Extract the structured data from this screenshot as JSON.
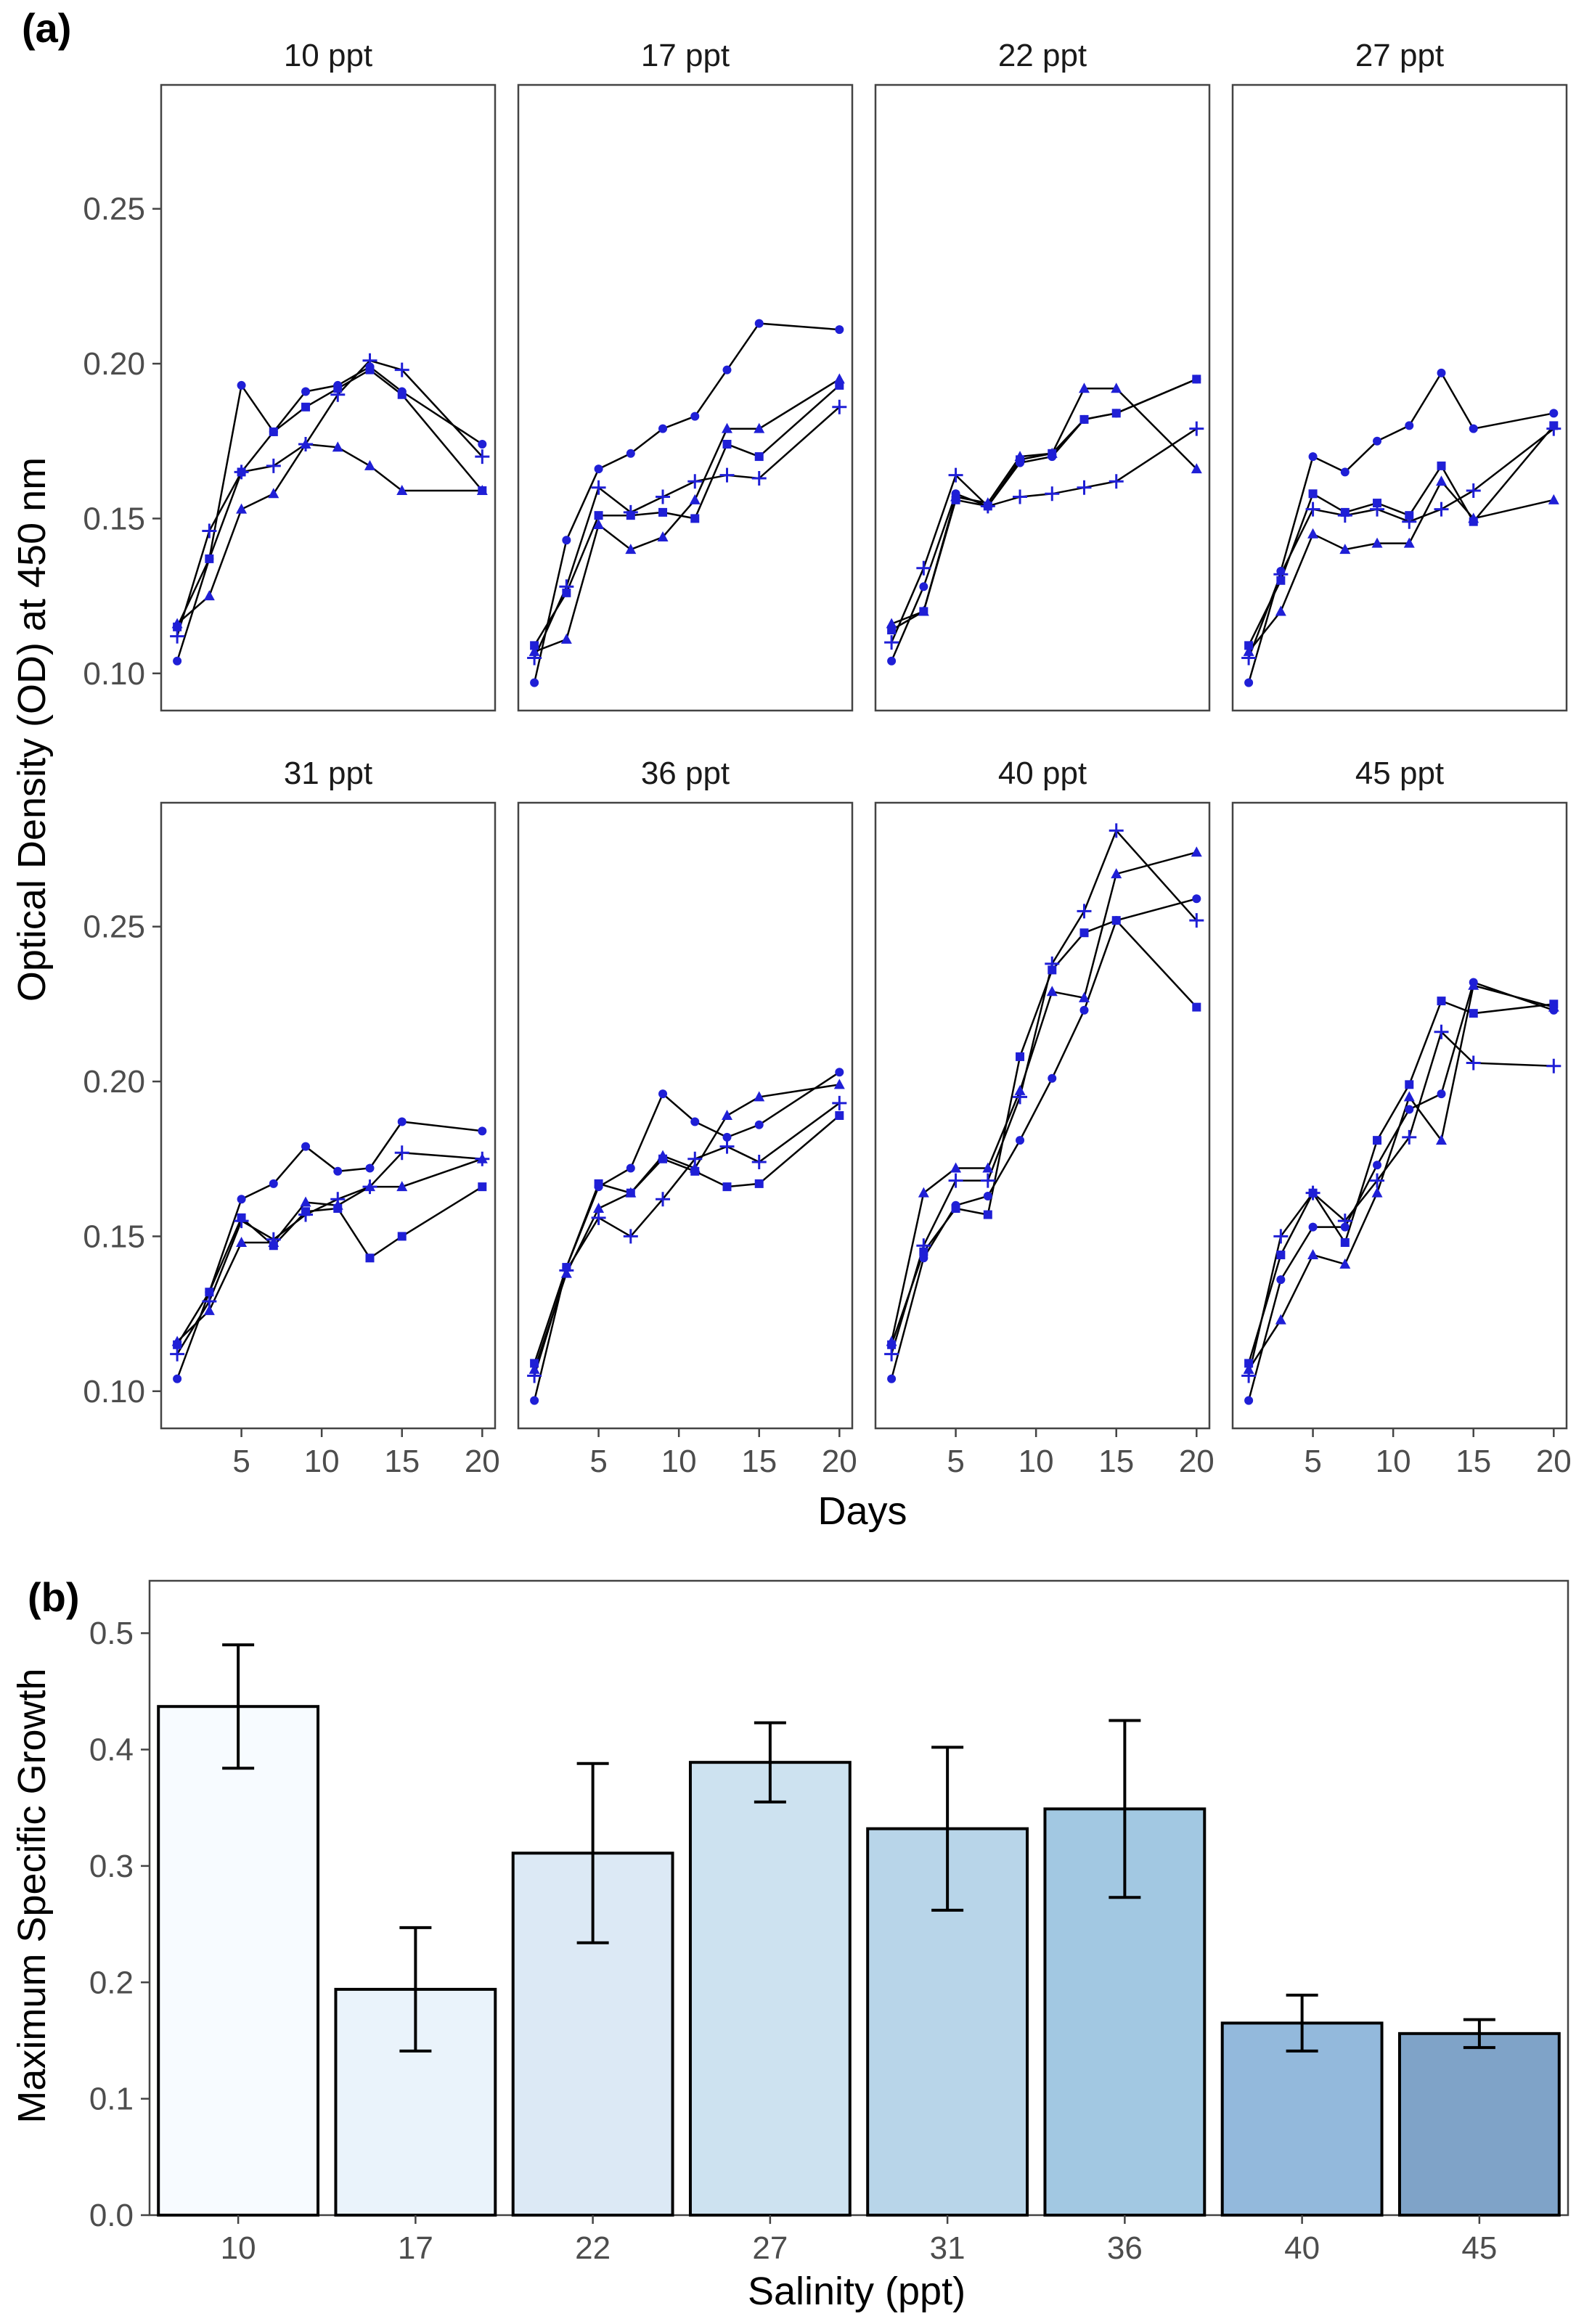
{
  "chart_data": [
    {
      "type": "line",
      "tag": "(a)",
      "xlabel": "Days",
      "ylabel": "Optical Density (OD) at 450 nm",
      "ylim": [
        0.088,
        0.29
      ],
      "xlim": [
        0,
        20.8
      ],
      "yticks": [
        0.1,
        0.15,
        0.2,
        0.25
      ],
      "ytick_labels": [
        "0.10",
        "0.15",
        "0.20",
        "0.25"
      ],
      "xticks": [
        5,
        10,
        15,
        20
      ],
      "xtick_labels": [
        "5",
        "10",
        "15",
        "20"
      ],
      "x": [
        1,
        3,
        5,
        7,
        9,
        11,
        13,
        15,
        20
      ],
      "marker_color": "#1f1fd6",
      "series_markers": [
        "circle",
        "square",
        "triangle",
        "plus"
      ],
      "panels": [
        {
          "label": "10 ppt",
          "series": [
            {
              "name": "circle",
              "values": [
                0.104,
                0.137,
                0.193,
                0.178,
                0.191,
                0.193,
                0.199,
                0.191,
                0.174
              ]
            },
            {
              "name": "square",
              "values": [
                0.115,
                0.137,
                0.165,
                0.178,
                0.186,
                0.192,
                0.198,
                0.19,
                0.159
              ]
            },
            {
              "name": "triangle",
              "values": [
                0.116,
                0.125,
                0.153,
                0.158,
                0.174,
                0.173,
                0.167,
                0.159,
                0.159
              ]
            },
            {
              "name": "plus",
              "values": [
                0.112,
                0.146,
                0.165,
                0.167,
                0.174,
                0.19,
                0.201,
                0.198,
                0.17
              ]
            }
          ]
        },
        {
          "label": "17 ppt",
          "series": [
            {
              "name": "circle",
              "values": [
                0.097,
                0.143,
                0.166,
                0.171,
                0.179,
                0.183,
                0.198,
                0.213,
                0.211
              ]
            },
            {
              "name": "square",
              "values": [
                0.109,
                0.126,
                0.151,
                0.151,
                0.152,
                0.15,
                0.174,
                0.17,
                0.193
              ]
            },
            {
              "name": "triangle",
              "values": [
                0.107,
                0.111,
                0.148,
                0.14,
                0.144,
                0.156,
                0.179,
                0.179,
                0.195
              ]
            },
            {
              "name": "plus",
              "values": [
                0.105,
                0.128,
                0.16,
                0.152,
                0.157,
                0.162,
                0.164,
                0.163,
                0.186
              ]
            }
          ]
        },
        {
          "label": "22 ppt",
          "series": [
            {
              "name": "circle",
              "values": [
                0.104,
                0.128,
                0.158,
                0.154,
                0.168,
                0.17,
                0.182,
                0.184,
                0.195
              ]
            },
            {
              "name": "square",
              "values": [
                0.114,
                0.12,
                0.156,
                0.154,
                0.169,
                0.171,
                0.182,
                0.184,
                0.195
              ]
            },
            {
              "name": "triangle",
              "values": [
                0.116,
                0.12,
                0.157,
                0.155,
                0.17,
                0.171,
                0.192,
                0.192,
                0.166
              ]
            },
            {
              "name": "plus",
              "values": [
                0.11,
                0.134,
                0.164,
                0.154,
                0.157,
                0.158,
                0.16,
                0.162,
                0.179
              ]
            }
          ]
        },
        {
          "label": "27 ppt",
          "series": [
            {
              "name": "circle",
              "values": [
                0.097,
                0.133,
                0.17,
                0.165,
                0.175,
                0.18,
                0.197,
                0.179,
                0.184
              ]
            },
            {
              "name": "square",
              "values": [
                0.109,
                0.13,
                0.158,
                0.152,
                0.155,
                0.151,
                0.167,
                0.149,
                0.18
              ]
            },
            {
              "name": "triangle",
              "values": [
                0.107,
                0.12,
                0.145,
                0.14,
                0.142,
                0.142,
                0.162,
                0.15,
                0.156
              ]
            },
            {
              "name": "plus",
              "values": [
                0.105,
                0.132,
                0.153,
                0.151,
                0.153,
                0.149,
                0.153,
                0.159,
                0.179
              ]
            }
          ]
        },
        {
          "label": "31 ppt",
          "series": [
            {
              "name": "circle",
              "values": [
                0.104,
                0.132,
                0.162,
                0.167,
                0.179,
                0.171,
                0.172,
                0.187,
                0.184
              ]
            },
            {
              "name": "square",
              "values": [
                0.115,
                0.132,
                0.156,
                0.147,
                0.158,
                0.159,
                0.143,
                0.15,
                0.166
              ]
            },
            {
              "name": "triangle",
              "values": [
                0.116,
                0.126,
                0.148,
                0.148,
                0.161,
                0.16,
                0.166,
                0.166,
                0.175
              ]
            },
            {
              "name": "plus",
              "values": [
                0.112,
                0.129,
                0.155,
                0.149,
                0.157,
                0.162,
                0.166,
                0.177,
                0.175
              ]
            }
          ]
        },
        {
          "label": "36 ppt",
          "series": [
            {
              "name": "circle",
              "values": [
                0.097,
                0.14,
                0.166,
                0.172,
                0.196,
                0.187,
                0.182,
                0.186,
                0.203
              ]
            },
            {
              "name": "square",
              "values": [
                0.109,
                0.14,
                0.167,
                0.164,
                0.175,
                0.171,
                0.166,
                0.167,
                0.189
              ]
            },
            {
              "name": "triangle",
              "values": [
                0.107,
                0.138,
                0.159,
                0.164,
                0.176,
                0.172,
                0.189,
                0.195,
                0.199
              ]
            },
            {
              "name": "plus",
              "values": [
                0.105,
                0.139,
                0.156,
                0.15,
                0.162,
                0.175,
                0.179,
                0.174,
                0.193
              ]
            }
          ]
        },
        {
          "label": "40 ppt",
          "series": [
            {
              "name": "circle",
              "values": [
                0.104,
                0.143,
                0.16,
                0.163,
                0.181,
                0.201,
                0.223,
                0.252,
                0.259
              ]
            },
            {
              "name": "square",
              "values": [
                0.115,
                0.145,
                0.159,
                0.157,
                0.208,
                0.236,
                0.248,
                0.252,
                0.224
              ]
            },
            {
              "name": "triangle",
              "values": [
                0.116,
                0.164,
                0.172,
                0.172,
                0.197,
                0.229,
                0.227,
                0.267,
                0.274
              ]
            },
            {
              "name": "plus",
              "values": [
                0.112,
                0.147,
                0.168,
                0.168,
                0.195,
                0.238,
                0.255,
                0.281,
                0.252
              ]
            }
          ]
        },
        {
          "label": "45 ppt",
          "series": [
            {
              "name": "circle",
              "values": [
                0.097,
                0.136,
                0.153,
                0.153,
                0.173,
                0.191,
                0.196,
                0.232,
                0.223
              ]
            },
            {
              "name": "square",
              "values": [
                0.109,
                0.144,
                0.164,
                0.148,
                0.181,
                0.199,
                0.226,
                0.222,
                0.225
              ]
            },
            {
              "name": "triangle",
              "values": [
                0.107,
                0.123,
                0.144,
                0.141,
                0.164,
                0.195,
                0.181,
                0.231,
                0.224
              ]
            },
            {
              "name": "plus",
              "values": [
                0.105,
                0.15,
                0.164,
                0.155,
                0.168,
                0.182,
                0.216,
                0.206,
                0.205
              ]
            }
          ]
        }
      ]
    },
    {
      "type": "bar",
      "tag": "(b)",
      "xlabel": "Salinity (ppt)",
      "ylabel": "Maximum Specific Growth",
      "categories": [
        "10",
        "17",
        "22",
        "27",
        "31",
        "36",
        "40",
        "45"
      ],
      "values": [
        0.437,
        0.194,
        0.311,
        0.389,
        0.332,
        0.349,
        0.165,
        0.156
      ],
      "errors": [
        0.053,
        0.053,
        0.077,
        0.034,
        0.07,
        0.076,
        0.024,
        0.012
      ],
      "colors": [
        "#f7fbff",
        "#eaf3fb",
        "#dce9f5",
        "#cde2f0",
        "#b8d5e9",
        "#a2c8e2",
        "#93b9dc",
        "#7fa3c8"
      ],
      "ylim": [
        0,
        0.545
      ],
      "yticks": [
        0,
        0.1,
        0.2,
        0.3,
        0.4,
        0.5
      ],
      "ytick_labels": [
        "0.0",
        "0.1",
        "0.2",
        "0.3",
        "0.4",
        "0.5"
      ]
    }
  ]
}
